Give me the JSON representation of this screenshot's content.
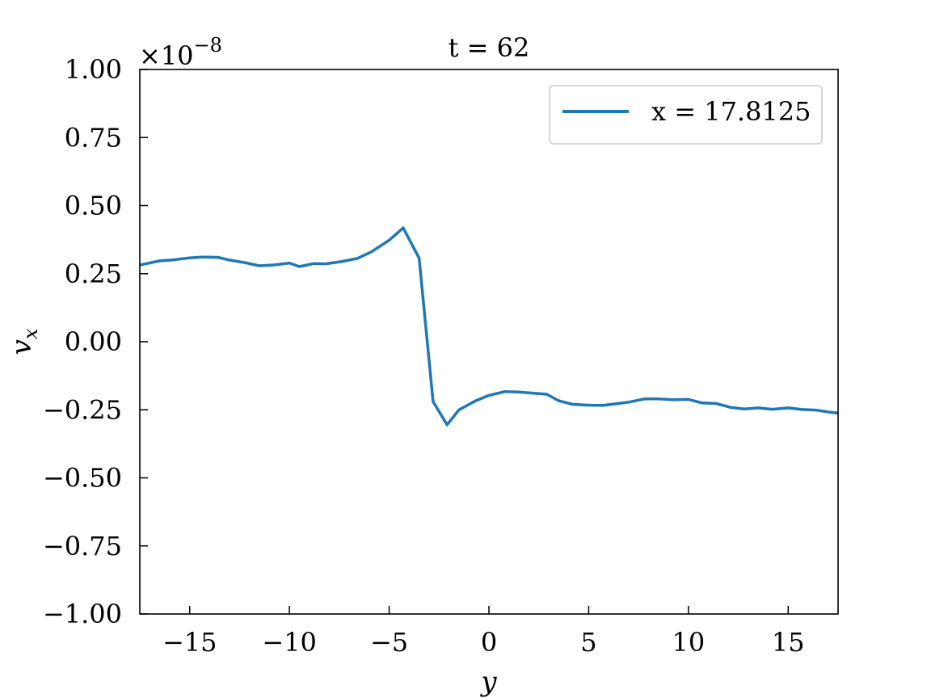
{
  "chart_data": {
    "type": "line",
    "title": "t = 62",
    "xlabel": "y",
    "ylabel": "v",
    "ylabel_subscript": "x",
    "y_multiplier_label": "×10",
    "y_multiplier_exponent": "−8",
    "xlim": [
      -17.5,
      17.5
    ],
    "ylim": [
      -1.0,
      1.0
    ],
    "x_ticks": [
      -15,
      -10,
      -5,
      0,
      5,
      10,
      15
    ],
    "x_tick_labels": [
      "−15",
      "−10",
      "−5",
      "0",
      "5",
      "10",
      "15"
    ],
    "y_ticks": [
      1.0,
      0.75,
      0.5,
      0.25,
      0.0,
      -0.25,
      -0.5,
      -0.75,
      -1.0
    ],
    "y_tick_labels": [
      "1.00",
      "0.75",
      "0.50",
      "0.25",
      "0.00",
      "−0.25",
      "−0.50",
      "−0.75",
      "−1.00"
    ],
    "grid": false,
    "legend_position": "top-right",
    "series": [
      {
        "name": "x = 17.8125",
        "color": "#1f77b4",
        "x": [
          -17.5,
          -16.5,
          -15.9,
          -15.0,
          -14.4,
          -13.6,
          -13.0,
          -12.2,
          -11.5,
          -10.8,
          -10.0,
          -9.5,
          -8.8,
          -8.2,
          -7.4,
          -6.6,
          -5.9,
          -5.0,
          -4.3,
          -3.5,
          -2.8,
          -2.1,
          -1.5,
          -0.7,
          0.0,
          0.8,
          1.5,
          2.9,
          3.5,
          4.2,
          5.0,
          5.7,
          7.0,
          7.8,
          8.5,
          9.2,
          10.0,
          10.7,
          11.4,
          12.1,
          12.8,
          13.5,
          14.2,
          15.0,
          15.7,
          16.4,
          17.1,
          17.5
        ],
        "y": [
          0.282,
          0.297,
          0.3,
          0.308,
          0.311,
          0.31,
          0.3,
          0.29,
          0.279,
          0.282,
          0.289,
          0.276,
          0.287,
          0.286,
          0.294,
          0.306,
          0.33,
          0.373,
          0.418,
          0.307,
          -0.22,
          -0.305,
          -0.25,
          -0.218,
          -0.197,
          -0.183,
          -0.185,
          -0.193,
          -0.217,
          -0.23,
          -0.233,
          -0.234,
          -0.222,
          -0.21,
          -0.21,
          -0.213,
          -0.212,
          -0.225,
          -0.227,
          -0.241,
          -0.247,
          -0.243,
          -0.248,
          -0.243,
          -0.249,
          -0.251,
          -0.259,
          -0.262
        ]
      }
    ]
  }
}
